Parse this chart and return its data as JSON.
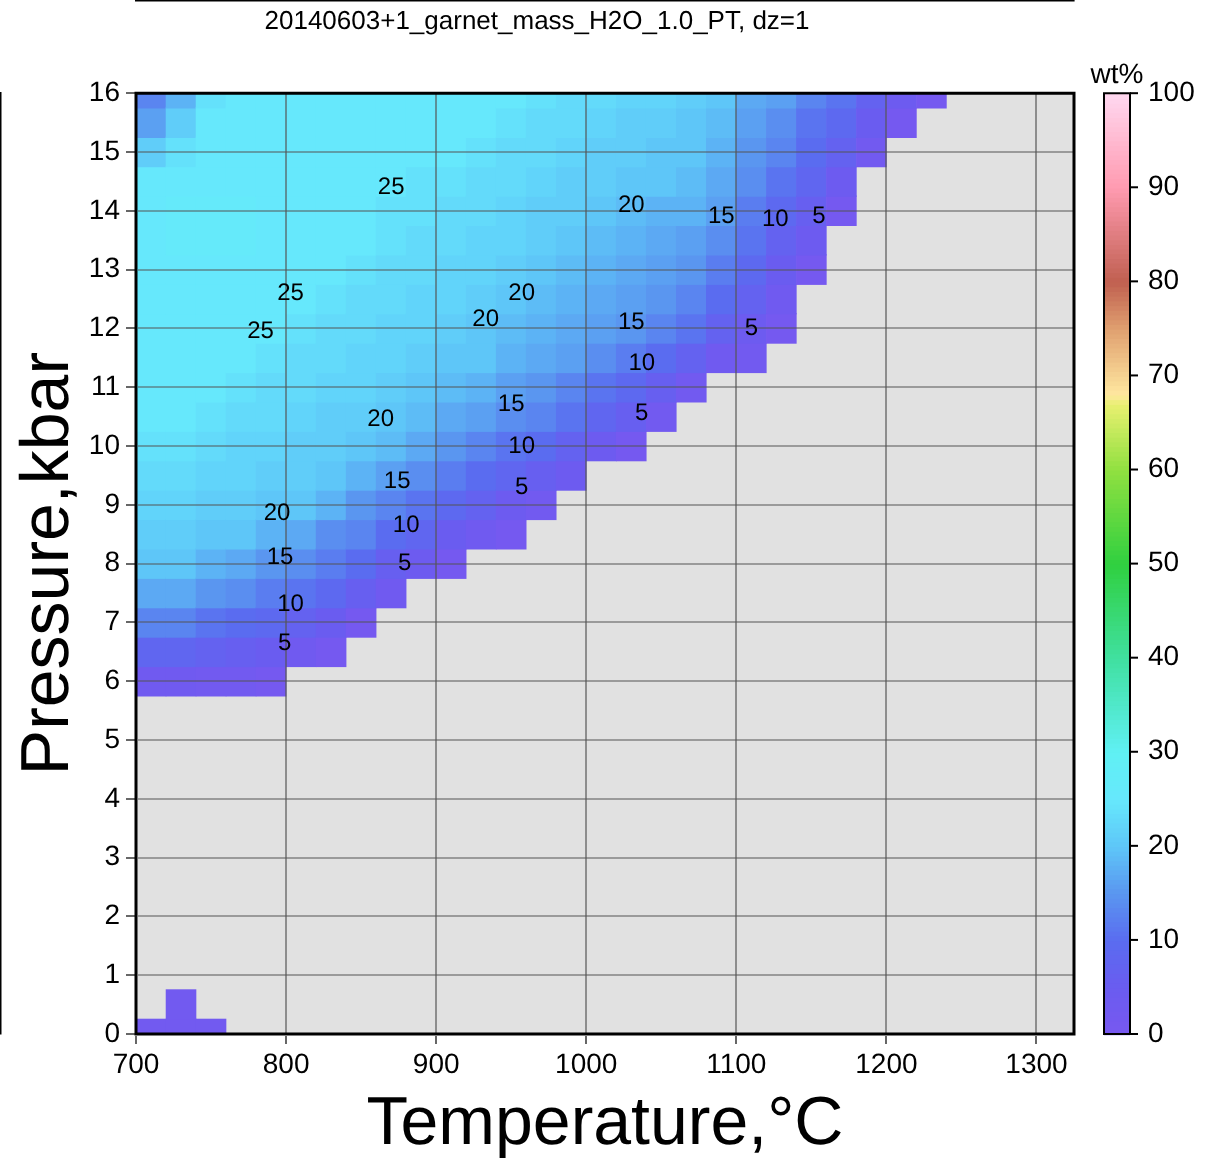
{
  "chart_data": {
    "type": "scatter",
    "title": "20140603+1_garnet_mass_H2O_1.0_PT, dz=1",
    "xlabel": "Temperature,°C",
    "ylabel": "Pressure,kbar",
    "clabel": "wt%",
    "xlim": [
      700,
      1325
    ],
    "xticks": [
      700,
      800,
      900,
      1000,
      1100,
      1200,
      1300
    ],
    "ylim": [
      0,
      16
    ],
    "yticks": [
      0,
      1,
      2,
      3,
      4,
      5,
      6,
      7,
      8,
      9,
      10,
      11,
      12,
      13,
      14,
      15,
      16
    ],
    "clim": [
      0,
      100
    ],
    "cticks": [
      0,
      10,
      20,
      30,
      40,
      50,
      60,
      70,
      80,
      90,
      100
    ],
    "grid": true,
    "marker": "square",
    "series": [
      {
        "x": [
          710,
          730,
          750,
          730,
          710,
          710,
          710,
          710,
          710,
          710,
          710,
          710,
          710,
          710,
          710,
          710,
          710,
          710,
          710,
          710,
          710,
          710,
          710,
          710,
          710,
          730,
          730,
          730,
          730,
          730,
          730,
          730,
          730,
          730,
          730,
          730,
          730,
          730,
          730,
          730,
          730,
          730,
          730,
          730,
          730,
          730,
          750,
          750,
          750,
          750,
          750,
          750,
          750,
          750,
          750,
          750,
          750,
          750,
          750,
          750,
          750,
          750,
          750,
          750,
          750,
          750,
          750,
          770,
          770,
          770,
          770,
          770,
          770,
          770,
          770,
          770,
          770,
          770,
          770,
          770,
          770,
          770,
          770,
          770,
          770,
          770,
          770,
          770,
          790,
          790,
          790,
          790,
          790,
          790,
          790,
          790,
          790,
          790,
          790,
          790,
          790,
          790,
          790,
          790,
          790,
          790,
          790,
          790,
          790,
          810,
          810,
          810,
          810,
          810,
          810,
          810,
          810,
          810,
          810,
          810,
          810,
          810,
          810,
          810,
          810,
          810,
          810,
          810,
          810,
          830,
          830,
          830,
          830,
          830,
          830,
          830,
          830,
          830,
          830,
          830,
          830,
          830,
          830,
          830,
          830,
          830,
          830,
          830,
          830,
          850,
          850,
          850,
          850,
          850,
          850,
          850,
          850,
          850,
          850,
          850,
          850,
          850,
          850,
          850,
          850,
          850,
          850,
          850,
          870,
          870,
          870,
          870,
          870,
          870,
          870,
          870,
          870,
          870,
          870,
          870,
          870,
          870,
          870,
          870,
          870,
          870,
          890,
          890,
          890,
          890,
          890,
          890,
          890,
          890,
          890,
          890,
          890,
          890,
          890,
          890,
          890,
          890,
          890,
          910,
          910,
          910,
          910,
          910,
          910,
          910,
          910,
          910,
          910,
          910,
          910,
          910,
          910,
          910,
          910,
          910,
          930,
          930,
          930,
          930,
          930,
          930,
          930,
          930,
          930,
          930,
          930,
          930,
          930,
          930,
          930,
          930,
          950,
          950,
          950,
          950,
          950,
          950,
          950,
          950,
          950,
          950,
          950,
          950,
          950,
          950,
          950,
          950,
          970,
          970,
          970,
          970,
          970,
          970,
          970,
          970,
          970,
          970,
          970,
          970,
          970,
          970,
          970,
          990,
          990,
          990,
          990,
          990,
          990,
          990,
          990,
          990,
          990,
          990,
          990,
          990,
          990,
          1010,
          1010,
          1010,
          1010,
          1010,
          1010,
          1010,
          1010,
          1010,
          1010,
          1010,
          1010,
          1010,
          1030,
          1030,
          1030,
          1030,
          1030,
          1030,
          1030,
          1030,
          1030,
          1030,
          1030,
          1030,
          1030,
          1050,
          1050,
          1050,
          1050,
          1050,
          1050,
          1050,
          1050,
          1050,
          1050,
          1050,
          1050,
          1070,
          1070,
          1070,
          1070,
          1070,
          1070,
          1070,
          1070,
          1070,
          1070,
          1070,
          1090,
          1090,
          1090,
          1090,
          1090,
          1090,
          1090,
          1090,
          1090,
          1090,
          1110,
          1110,
          1110,
          1110,
          1110,
          1110,
          1110,
          1110,
          1110,
          1110,
          1130,
          1130,
          1130,
          1130,
          1130,
          1130,
          1130,
          1130,
          1130,
          1150,
          1150,
          1150,
          1150,
          1150,
          1150,
          1150,
          1170,
          1170,
          1170,
          1170,
          1170,
          1190,
          1190,
          1190,
          1210,
          1210,
          1230
        ],
        "values": [
          0,
          0,
          0,
          0.5,
          6,
          6.5,
          7,
          7.5,
          8,
          8.5,
          9,
          9.5,
          10,
          10.5,
          11,
          11.5,
          12,
          12.5,
          13,
          13.5,
          14,
          14.5,
          15,
          15.5,
          16,
          6,
          6.5,
          7,
          7.5,
          8,
          8.5,
          9,
          9.5,
          10,
          10.5,
          11,
          11.5,
          12,
          12.5,
          13,
          13.5,
          14,
          14.5,
          15,
          15.5,
          16,
          6,
          6.5,
          7,
          7.5,
          8,
          8.5,
          9,
          9.5,
          10,
          10.5,
          11,
          11.5,
          12,
          12.5,
          13,
          13.5,
          14,
          14.5,
          15,
          15.5,
          16,
          6,
          6.5,
          7,
          7.5,
          8,
          8.5,
          9,
          9.5,
          10,
          10.5,
          11,
          11.5,
          12,
          12.5,
          13,
          13.5,
          14,
          14.5,
          15,
          15.5,
          16,
          6,
          6.5,
          7,
          7.5,
          8,
          8.5,
          9,
          9.5,
          10,
          10.5,
          11,
          11.5,
          12,
          12.5,
          13,
          13.5,
          14,
          14.5,
          15,
          15.5,
          16,
          6.5,
          7,
          7.5,
          8,
          8.5,
          9,
          9.5,
          10,
          10.5,
          11,
          11.5,
          12,
          12.5,
          13,
          13.5,
          14,
          14.5,
          15,
          15.5,
          16,
          6.5,
          7,
          7.5,
          8,
          8.5,
          9,
          9.5,
          10,
          10.5,
          11,
          11.5,
          12,
          12.5,
          13,
          13.5,
          14,
          14.5,
          15,
          15.5,
          16,
          7,
          7.5,
          8,
          8.5,
          9,
          9.5,
          10,
          10.5,
          11,
          11.5,
          12,
          12.5,
          13,
          13.5,
          14,
          14.5,
          15,
          15.5,
          16,
          7.5,
          8,
          8.5,
          9,
          9.5,
          10,
          10.5,
          11,
          11.5,
          12,
          12.5,
          13,
          13.5,
          14,
          14.5,
          15,
          15.5,
          16,
          8,
          8.5,
          9,
          9.5,
          10,
          10.5,
          11,
          11.5,
          12,
          12.5,
          13,
          13.5,
          14,
          14.5,
          15,
          15.5,
          16,
          8,
          8.5,
          9,
          9.5,
          10,
          10.5,
          11,
          11.5,
          12,
          12.5,
          13,
          13.5,
          14,
          14.5,
          15,
          15.5,
          16,
          8.5,
          9,
          9.5,
          10,
          10.5,
          11,
          11.5,
          12,
          12.5,
          13,
          13.5,
          14,
          14.5,
          15,
          15.5,
          16,
          8.5,
          9,
          9.5,
          10,
          10.5,
          11,
          11.5,
          12,
          12.5,
          13,
          13.5,
          14,
          14.5,
          15,
          15.5,
          16,
          9,
          9.5,
          10,
          10.5,
          11,
          11.5,
          12,
          12.5,
          13,
          13.5,
          14,
          14.5,
          15,
          15.5,
          16,
          9.5,
          10,
          10.5,
          11,
          11.5,
          12,
          12.5,
          13,
          13.5,
          14,
          14.5,
          15,
          15.5,
          16,
          10,
          10.5,
          11,
          11.5,
          12,
          12.5,
          13,
          13.5,
          14,
          14.5,
          15,
          15.5,
          16,
          10,
          10.5,
          11,
          11.5,
          12,
          12.5,
          13,
          13.5,
          14,
          14.5,
          15,
          15.5,
          16,
          10.5,
          11,
          11.5,
          12,
          12.5,
          13,
          13.5,
          14,
          14.5,
          15,
          15.5,
          16,
          11,
          11.5,
          12,
          12.5,
          13,
          13.5,
          14,
          14.5,
          15,
          15.5,
          16,
          11.5,
          12,
          12.5,
          13,
          13.5,
          14,
          14.5,
          15,
          15.5,
          16,
          11.5,
          12,
          12.5,
          13,
          13.5,
          14,
          14.5,
          15,
          15.5,
          16,
          12,
          12.5,
          13,
          13.5,
          14,
          14.5,
          15,
          15.5,
          16,
          13,
          13.5,
          14,
          14.5,
          15,
          15.5,
          16,
          14,
          14.5,
          15,
          15.5,
          16,
          15,
          15.5,
          16,
          15.5,
          16,
          16
        ],
        "cvalues": [
          2,
          2,
          2,
          2,
          3,
          8,
          13,
          17,
          20,
          21,
          22,
          23,
          24,
          25,
          25,
          25,
          25,
          25,
          25,
          25,
          25,
          25,
          21,
          16,
          13,
          3,
          8,
          13,
          17,
          20,
          21,
          22,
          23,
          24,
          25,
          25,
          25,
          25,
          25,
          25,
          26,
          26,
          25,
          24,
          21,
          18,
          2,
          7,
          11,
          15,
          18,
          20,
          21,
          22,
          23,
          24,
          25,
          25,
          25,
          25,
          25,
          26,
          26,
          25,
          25,
          25,
          24,
          2,
          6,
          10,
          14,
          17,
          20,
          21,
          22,
          22,
          23,
          24,
          25,
          25,
          25,
          25,
          26,
          26,
          25,
          25,
          25,
          25,
          1,
          5,
          9,
          12,
          15,
          18,
          20,
          21,
          22,
          23,
          23,
          24,
          25,
          25,
          25,
          25,
          25,
          25,
          25,
          25,
          25,
          3,
          7,
          11,
          14,
          17,
          20,
          21,
          21,
          22,
          23,
          23,
          24,
          25,
          25,
          25,
          25,
          25,
          25,
          25,
          25,
          1,
          5,
          9,
          12,
          14,
          18,
          20,
          21,
          21,
          22,
          23,
          23,
          24,
          25,
          25,
          25,
          25,
          25,
          25,
          25,
          1,
          6,
          10,
          13,
          15,
          18,
          20,
          21,
          22,
          22,
          23,
          23,
          24,
          25,
          25,
          25,
          25,
          25,
          25,
          3,
          6,
          10,
          13,
          16,
          19,
          20,
          21,
          22,
          22,
          23,
          23,
          24,
          24,
          25,
          25,
          25,
          25,
          4,
          8,
          11,
          14,
          17,
          19,
          20,
          21,
          22,
          22,
          23,
          23,
          24,
          24,
          25,
          25,
          25,
          1,
          5,
          9,
          12,
          15,
          17,
          19,
          20,
          21,
          22,
          22,
          23,
          23,
          24,
          25,
          25,
          25,
          3,
          7,
          10,
          13,
          16,
          18,
          20,
          20,
          21,
          22,
          22,
          23,
          23,
          24,
          25,
          25,
          1,
          4,
          8,
          11,
          14,
          16,
          18,
          19,
          20,
          21,
          22,
          22,
          23,
          23,
          24,
          25,
          2,
          6,
          10,
          13,
          15,
          17,
          18,
          19,
          20,
          21,
          21,
          22,
          23,
          23,
          24,
          4,
          7,
          11,
          13,
          16,
          17,
          18,
          19,
          20,
          21,
          21,
          22,
          23,
          23,
          4,
          8,
          11,
          14,
          16,
          17,
          18,
          19,
          20,
          21,
          21,
          22,
          23,
          1,
          6,
          9,
          12,
          15,
          16,
          17,
          18,
          19,
          20,
          21,
          21,
          22,
          2,
          6,
          10,
          13,
          15,
          16,
          17,
          18,
          20,
          20,
          21,
          22,
          2,
          7,
          11,
          13,
          15,
          16,
          18,
          19,
          20,
          20,
          21,
          3,
          7,
          10,
          12,
          14,
          16,
          17,
          18,
          19,
          20,
          2,
          4,
          7,
          9,
          11,
          12,
          14,
          15,
          16,
          17,
          1,
          3,
          5,
          7,
          9,
          11,
          13,
          14,
          16,
          1,
          4,
          6,
          8,
          10,
          11,
          13,
          1,
          4,
          7,
          9,
          11,
          2,
          5,
          7,
          1,
          4,
          1
        ]
      }
    ],
    "annotations": [
      {
        "text": "25",
        "x": 783,
        "y": 11.95
      },
      {
        "text": "25",
        "x": 803,
        "y": 12.6
      },
      {
        "text": "25",
        "x": 870,
        "y": 14.4
      },
      {
        "text": "20",
        "x": 794,
        "y": 8.85
      },
      {
        "text": "20",
        "x": 863,
        "y": 10.45
      },
      {
        "text": "20",
        "x": 933,
        "y": 12.15
      },
      {
        "text": "20",
        "x": 957,
        "y": 12.6
      },
      {
        "text": "20",
        "x": 1030,
        "y": 14.1
      },
      {
        "text": "15",
        "x": 796,
        "y": 8.1
      },
      {
        "text": "15",
        "x": 874,
        "y": 9.4
      },
      {
        "text": "15",
        "x": 950,
        "y": 10.7
      },
      {
        "text": "15",
        "x": 1030,
        "y": 12.1
      },
      {
        "text": "15",
        "x": 1090,
        "y": 13.9
      },
      {
        "text": "10",
        "x": 803,
        "y": 7.3
      },
      {
        "text": "10",
        "x": 880,
        "y": 8.65
      },
      {
        "text": "10",
        "x": 957,
        "y": 10.0
      },
      {
        "text": "10",
        "x": 1037,
        "y": 11.4
      },
      {
        "text": "10",
        "x": 1126,
        "y": 13.85
      },
      {
        "text": "5",
        "x": 799,
        "y": 6.65
      },
      {
        "text": "5",
        "x": 879,
        "y": 8.0
      },
      {
        "text": "5",
        "x": 957,
        "y": 9.3
      },
      {
        "text": "5",
        "x": 1037,
        "y": 10.55
      },
      {
        "text": "5",
        "x": 1110,
        "y": 12.0
      },
      {
        "text": "5",
        "x": 1155,
        "y": 13.9
      }
    ]
  }
}
